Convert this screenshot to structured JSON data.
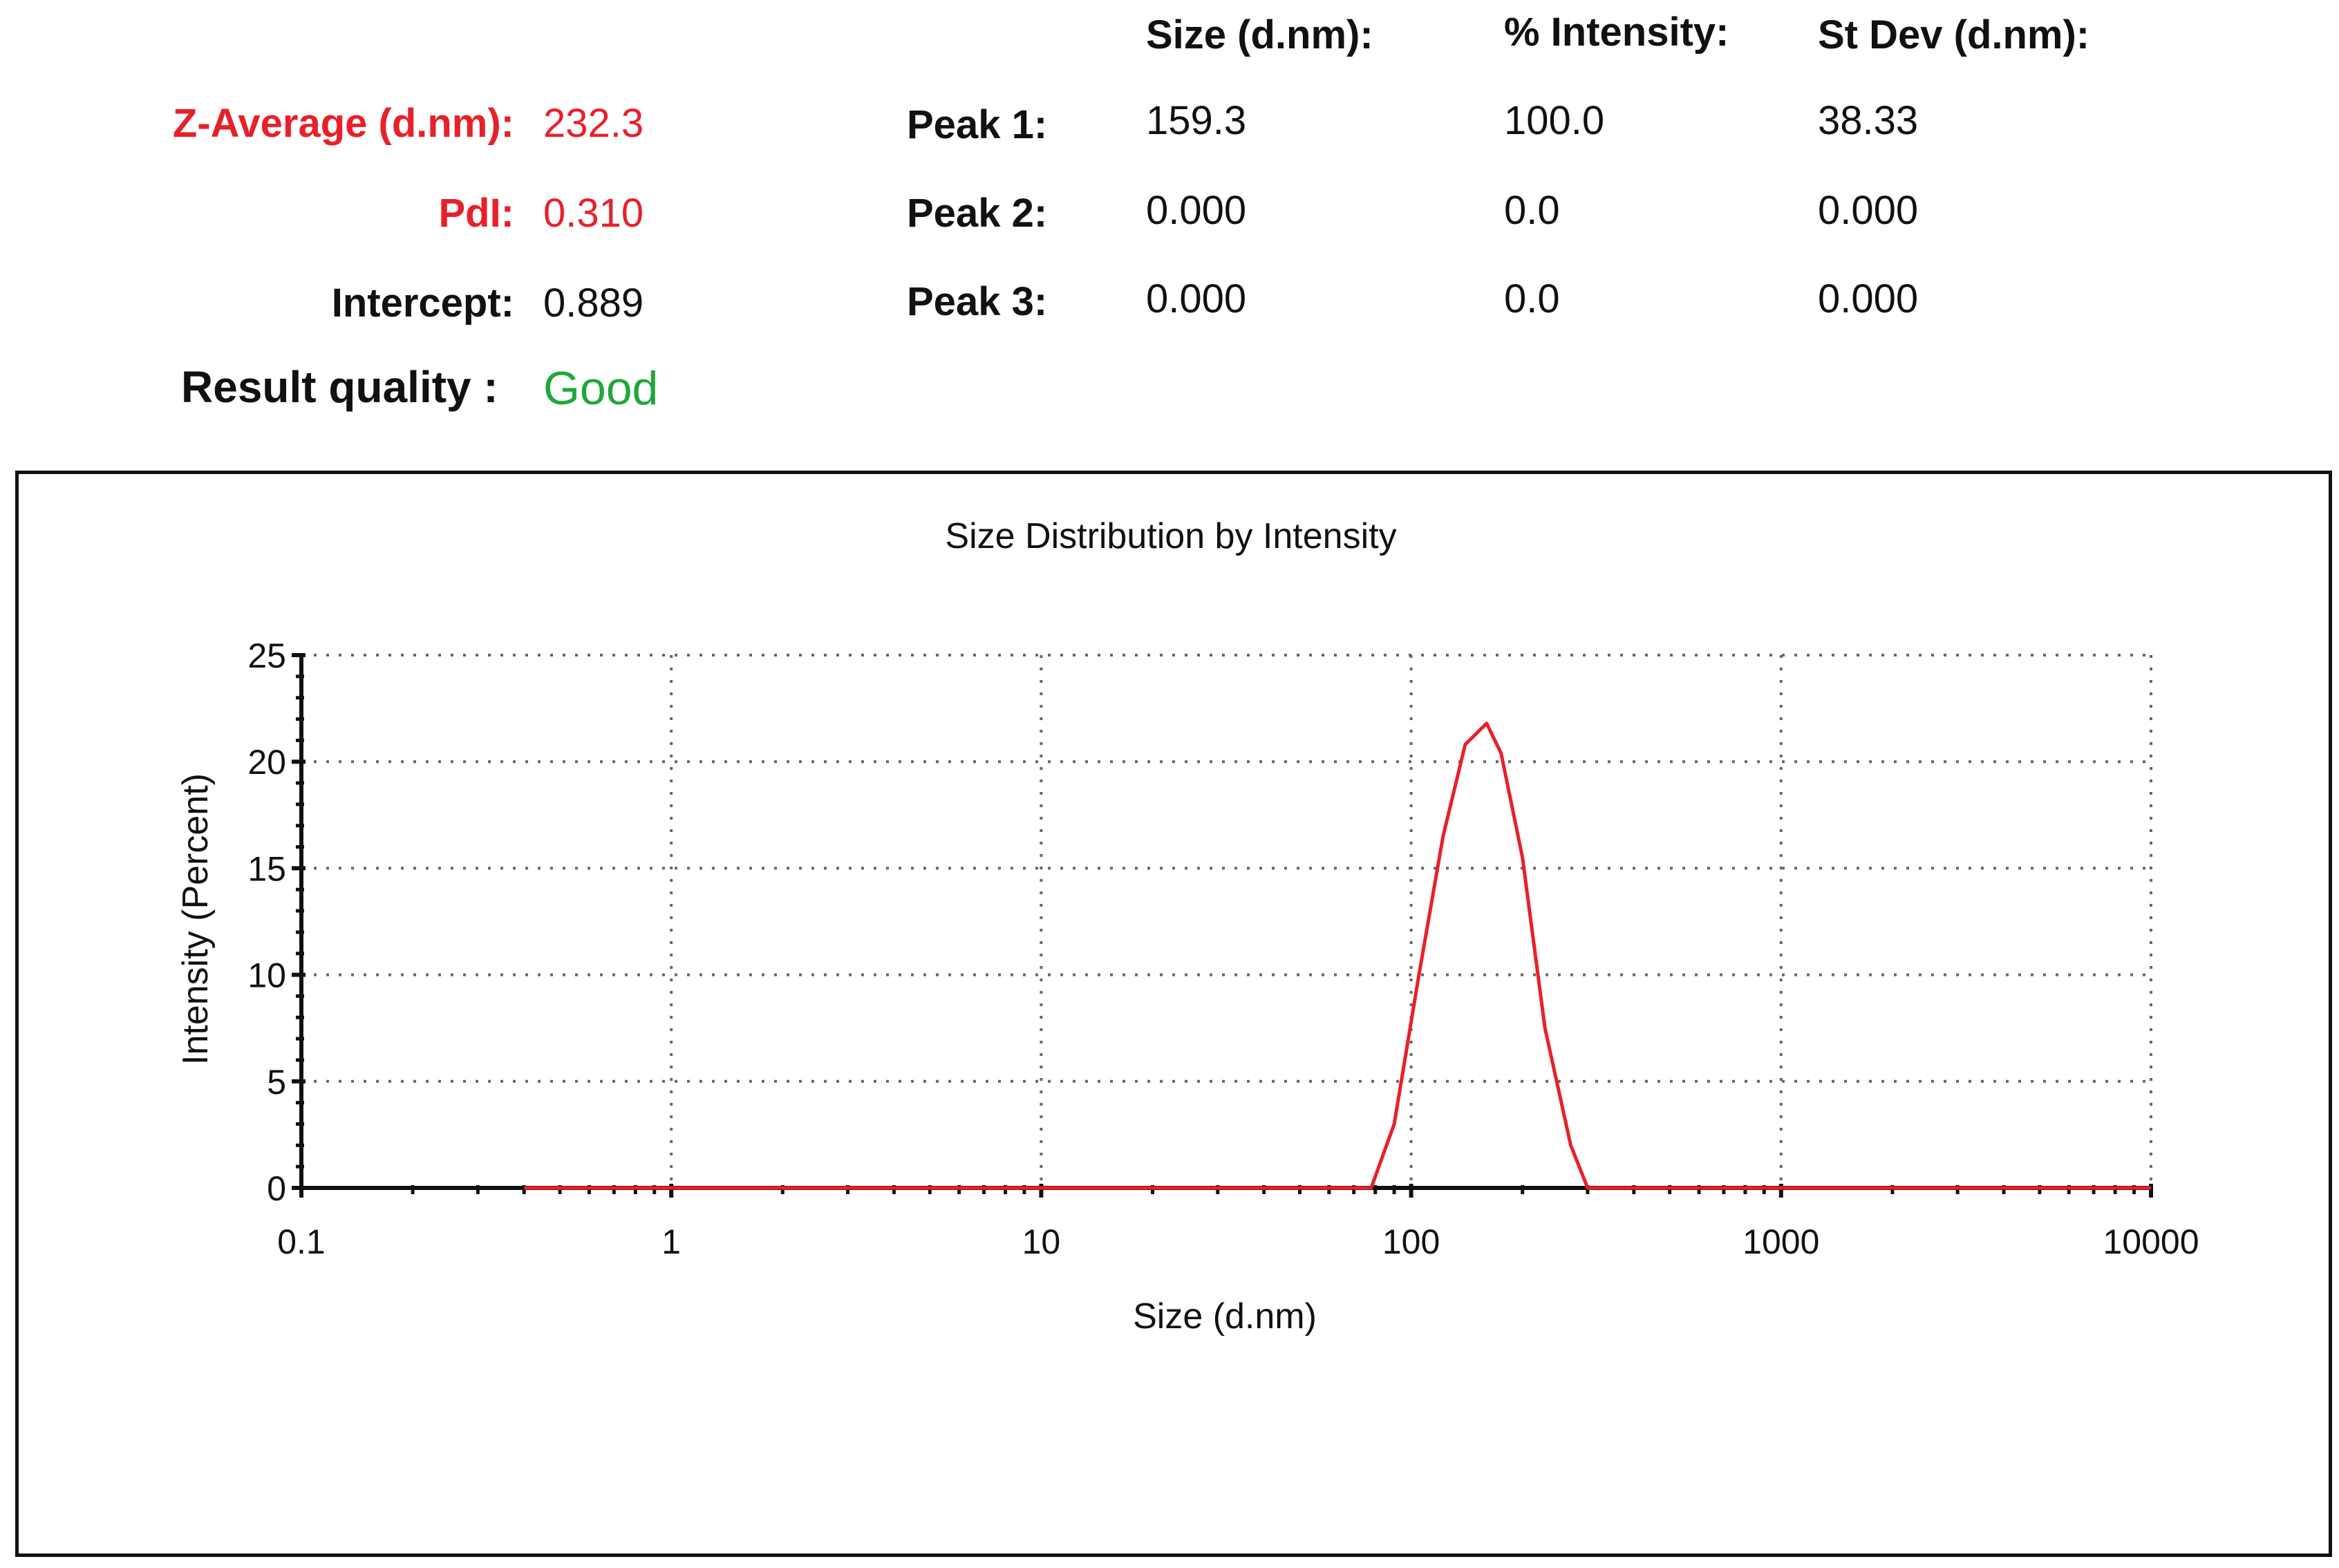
{
  "summary": {
    "z_average": {
      "label": "Z-Average (d.nm):",
      "value": "232.3"
    },
    "pdi": {
      "label": "PdI:",
      "value": "0.310"
    },
    "intercept": {
      "label": "Intercept:",
      "value": "0.889"
    },
    "result_quality": {
      "label": "Result quality :",
      "value": "Good"
    }
  },
  "peaks": {
    "headers": {
      "size": "Size (d.nm):",
      "intensity": "% Intensity:",
      "stdev": "St Dev (d.nm):"
    },
    "rows": [
      {
        "label": "Peak 1:",
        "size": "159.3",
        "intensity": "100.0",
        "stdev": "38.33"
      },
      {
        "label": "Peak 2:",
        "size": "0.000",
        "intensity": "0.0",
        "stdev": "0.000"
      },
      {
        "label": "Peak 3:",
        "size": "0.000",
        "intensity": "0.0",
        "stdev": "0.000"
      }
    ]
  },
  "colors": {
    "highlight": "#e8202a",
    "good": "#1fa83a",
    "curve": "#e8202a",
    "axis": "#111111",
    "grid": "#666666"
  },
  "chart_data": {
    "type": "line",
    "title": "Size Distribution by Intensity",
    "xlabel": "Size (d.nm)",
    "ylabel": "Intensity (Percent)",
    "xscale": "log",
    "xlim": [
      0.1,
      10000
    ],
    "ylim": [
      0,
      25
    ],
    "xticks": [
      "0.1",
      "1",
      "10",
      "100",
      "1000",
      "10000"
    ],
    "yticks": [
      "0",
      "5",
      "10",
      "15",
      "20",
      "25"
    ],
    "grid": true,
    "series": [
      {
        "x": [
          0.4,
          1,
          10,
          50,
          78,
          90,
          105,
          122,
          140,
          160,
          175,
          200,
          230,
          270,
          300,
          1000,
          10000
        ],
        "y": [
          0,
          0,
          0,
          0,
          0,
          3,
          10,
          16.5,
          20.8,
          21.8,
          20.4,
          15.5,
          7.5,
          2,
          0,
          0,
          0
        ]
      }
    ]
  }
}
